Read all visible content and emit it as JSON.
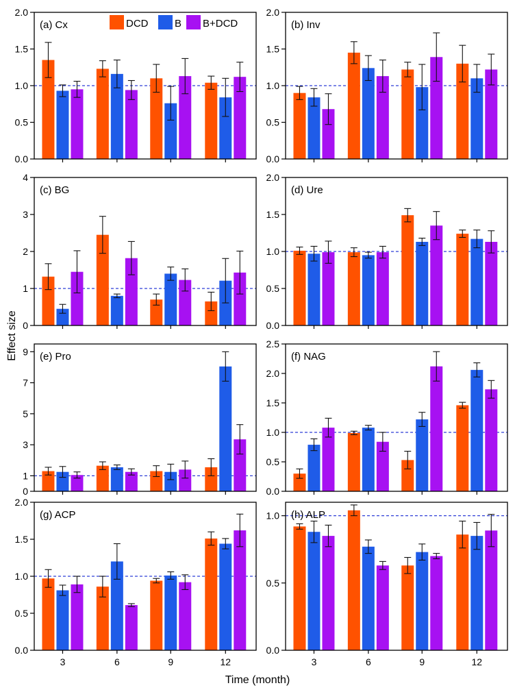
{
  "colors": {
    "DCD": "#ff5200",
    "B": "#1f5ce8",
    "B+DCD": "#a711f2",
    "reference": "#2f3fd6"
  },
  "chart_data": {
    "type": "bar",
    "categories": [
      "3",
      "6",
      "9",
      "12"
    ],
    "x_categories_label": "Time (month)",
    "xlabel": "Time (month)",
    "ylabel": "Effect size",
    "legend": [
      "DCD",
      "B",
      "B+DCD"
    ],
    "legend_placement": "top-right of panel (a)",
    "reference_line": 1.0,
    "panels": [
      {
        "label": "(a) Cx",
        "ylim": [
          0,
          2.0
        ],
        "yticks": [
          "0.0",
          "0.5",
          "1.0",
          "1.5",
          "2.0"
        ],
        "series": [
          {
            "name": "DCD",
            "values": [
              1.35,
              1.23,
              1.1,
              1.04
            ],
            "errors": [
              0.24,
              0.11,
              0.19,
              0.09
            ]
          },
          {
            "name": "B",
            "values": [
              0.93,
              1.16,
              0.76,
              0.84
            ],
            "errors": [
              0.08,
              0.19,
              0.23,
              0.26
            ]
          },
          {
            "name": "B+DCD",
            "values": [
              0.95,
              0.94,
              1.13,
              1.12
            ],
            "errors": [
              0.11,
              0.13,
              0.24,
              0.2
            ]
          }
        ]
      },
      {
        "label": "(b) Inv",
        "ylim": [
          0,
          2.0
        ],
        "yticks": [
          "0.0",
          "0.5",
          "1.0",
          "1.5",
          "2.0"
        ],
        "series": [
          {
            "name": "DCD",
            "values": [
              0.9,
              1.45,
              1.22,
              1.3
            ],
            "errors": [
              0.09,
              0.15,
              0.1,
              0.25
            ]
          },
          {
            "name": "B",
            "values": [
              0.84,
              1.24,
              0.98,
              1.1
            ],
            "errors": [
              0.12,
              0.17,
              0.31,
              0.19
            ]
          },
          {
            "name": "B+DCD",
            "values": [
              0.68,
              1.13,
              1.39,
              1.22
            ],
            "errors": [
              0.21,
              0.22,
              0.33,
              0.21
            ]
          }
        ]
      },
      {
        "label": "(c) BG",
        "ylim": [
          0,
          4
        ],
        "yticks": [
          "0",
          "1",
          "2",
          "3",
          "4"
        ],
        "series": [
          {
            "name": "DCD",
            "values": [
              1.32,
              2.45,
              0.7,
              0.65
            ],
            "errors": [
              0.35,
              0.5,
              0.15,
              0.25
            ]
          },
          {
            "name": "B",
            "values": [
              0.45,
              0.8,
              1.4,
              1.21
            ],
            "errors": [
              0.12,
              0.05,
              0.18,
              0.6
            ]
          },
          {
            "name": "B+DCD",
            "values": [
              1.45,
              1.82,
              1.23,
              1.43
            ],
            "errors": [
              0.57,
              0.45,
              0.3,
              0.58
            ]
          }
        ]
      },
      {
        "label": "(d) Ure",
        "ylim": [
          0,
          2.0
        ],
        "yticks": [
          "0.0",
          "0.5",
          "1.0",
          "1.5",
          "2.0"
        ],
        "series": [
          {
            "name": "DCD",
            "values": [
              1.01,
              0.99,
              1.49,
              1.24
            ],
            "errors": [
              0.05,
              0.06,
              0.09,
              0.05
            ]
          },
          {
            "name": "B",
            "values": [
              0.97,
              0.95,
              1.13,
              1.17
            ],
            "errors": [
              0.1,
              0.04,
              0.05,
              0.12
            ]
          },
          {
            "name": "B+DCD",
            "values": [
              0.99,
              0.99,
              1.35,
              1.13
            ],
            "errors": [
              0.15,
              0.08,
              0.19,
              0.15
            ]
          }
        ]
      },
      {
        "label": "(e) Pro",
        "ylim": [
          0,
          9.5
        ],
        "ymin_tick": 0,
        "yticks": [
          "0",
          "1",
          "3",
          "5",
          "7",
          "9"
        ],
        "series": [
          {
            "name": "DCD",
            "values": [
              1.3,
              1.65,
              1.3,
              1.55
            ],
            "errors": [
              0.25,
              0.25,
              0.35,
              0.55
            ]
          },
          {
            "name": "B",
            "values": [
              1.25,
              1.55,
              1.25,
              8.05
            ],
            "errors": [
              0.35,
              0.15,
              0.5,
              0.95
            ]
          },
          {
            "name": "B+DCD",
            "values": [
              1.05,
              1.25,
              1.4,
              3.35
            ],
            "errors": [
              0.2,
              0.2,
              0.55,
              0.95
            ]
          }
        ]
      },
      {
        "label": "(f) NAG",
        "ylim": [
          0,
          2.5
        ],
        "yticks": [
          "0.0",
          "0.5",
          "1.0",
          "1.5",
          "2.0",
          "2.5"
        ],
        "series": [
          {
            "name": "DCD",
            "values": [
              0.3,
              0.99,
              0.53,
              1.46
            ],
            "errors": [
              0.08,
              0.03,
              0.15,
              0.05
            ]
          },
          {
            "name": "B",
            "values": [
              0.79,
              1.08,
              1.22,
              2.06
            ],
            "errors": [
              0.1,
              0.04,
              0.12,
              0.12
            ]
          },
          {
            "name": "B+DCD",
            "values": [
              1.08,
              0.84,
              2.12,
              1.73
            ],
            "errors": [
              0.16,
              0.16,
              0.25,
              0.15
            ]
          }
        ]
      },
      {
        "label": "(g) ACP",
        "ylim": [
          0,
          2.0
        ],
        "yticks": [
          "0.0",
          "0.5",
          "1.0",
          "1.5",
          "2.0"
        ],
        "series": [
          {
            "name": "DCD",
            "values": [
              0.97,
              0.86,
              0.94,
              1.51
            ],
            "errors": [
              0.12,
              0.14,
              0.03,
              0.09
            ]
          },
          {
            "name": "B",
            "values": [
              0.81,
              1.2,
              1.01,
              1.44
            ],
            "errors": [
              0.07,
              0.24,
              0.05,
              0.07
            ]
          },
          {
            "name": "B+DCD",
            "values": [
              0.89,
              0.61,
              0.92,
              1.62
            ],
            "errors": [
              0.11,
              0.02,
              0.1,
              0.22
            ]
          }
        ]
      },
      {
        "label": "(h) ALP",
        "ylim": [
          0,
          1.1
        ],
        "yticks": [
          "0.0",
          "0.5",
          "1.0"
        ],
        "series": [
          {
            "name": "DCD",
            "values": [
              0.92,
              1.04,
              0.63,
              0.86
            ],
            "errors": [
              0.02,
              0.04,
              0.06,
              0.1
            ]
          },
          {
            "name": "B",
            "values": [
              0.88,
              0.77,
              0.73,
              0.85
            ],
            "errors": [
              0.08,
              0.05,
              0.06,
              0.1
            ]
          },
          {
            "name": "B+DCD",
            "values": [
              0.85,
              0.63,
              0.7,
              0.89
            ],
            "errors": [
              0.08,
              0.03,
              0.02,
              0.12
            ]
          }
        ]
      }
    ]
  }
}
